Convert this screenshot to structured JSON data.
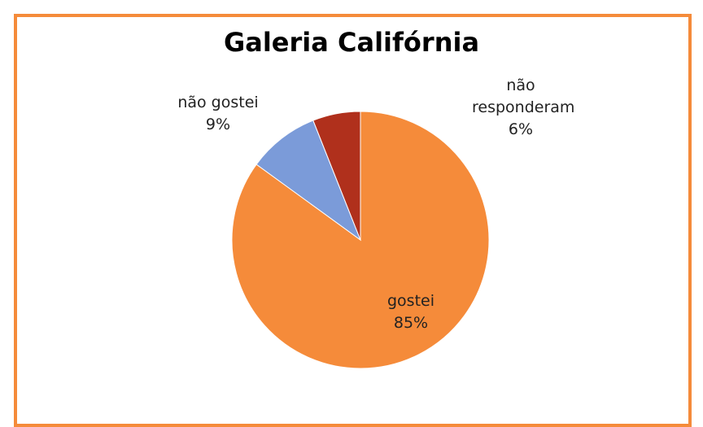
{
  "chart_data": {
    "type": "pie",
    "title": "Galeria Califórnia",
    "categories": [
      "gostei",
      "não gostei",
      "não responderam"
    ],
    "values": [
      85,
      9,
      6
    ],
    "value_labels": [
      "85%",
      "9%",
      "6%"
    ],
    "colors": [
      "#f58b3a",
      "#7b9bd9",
      "#b0301c"
    ]
  }
}
